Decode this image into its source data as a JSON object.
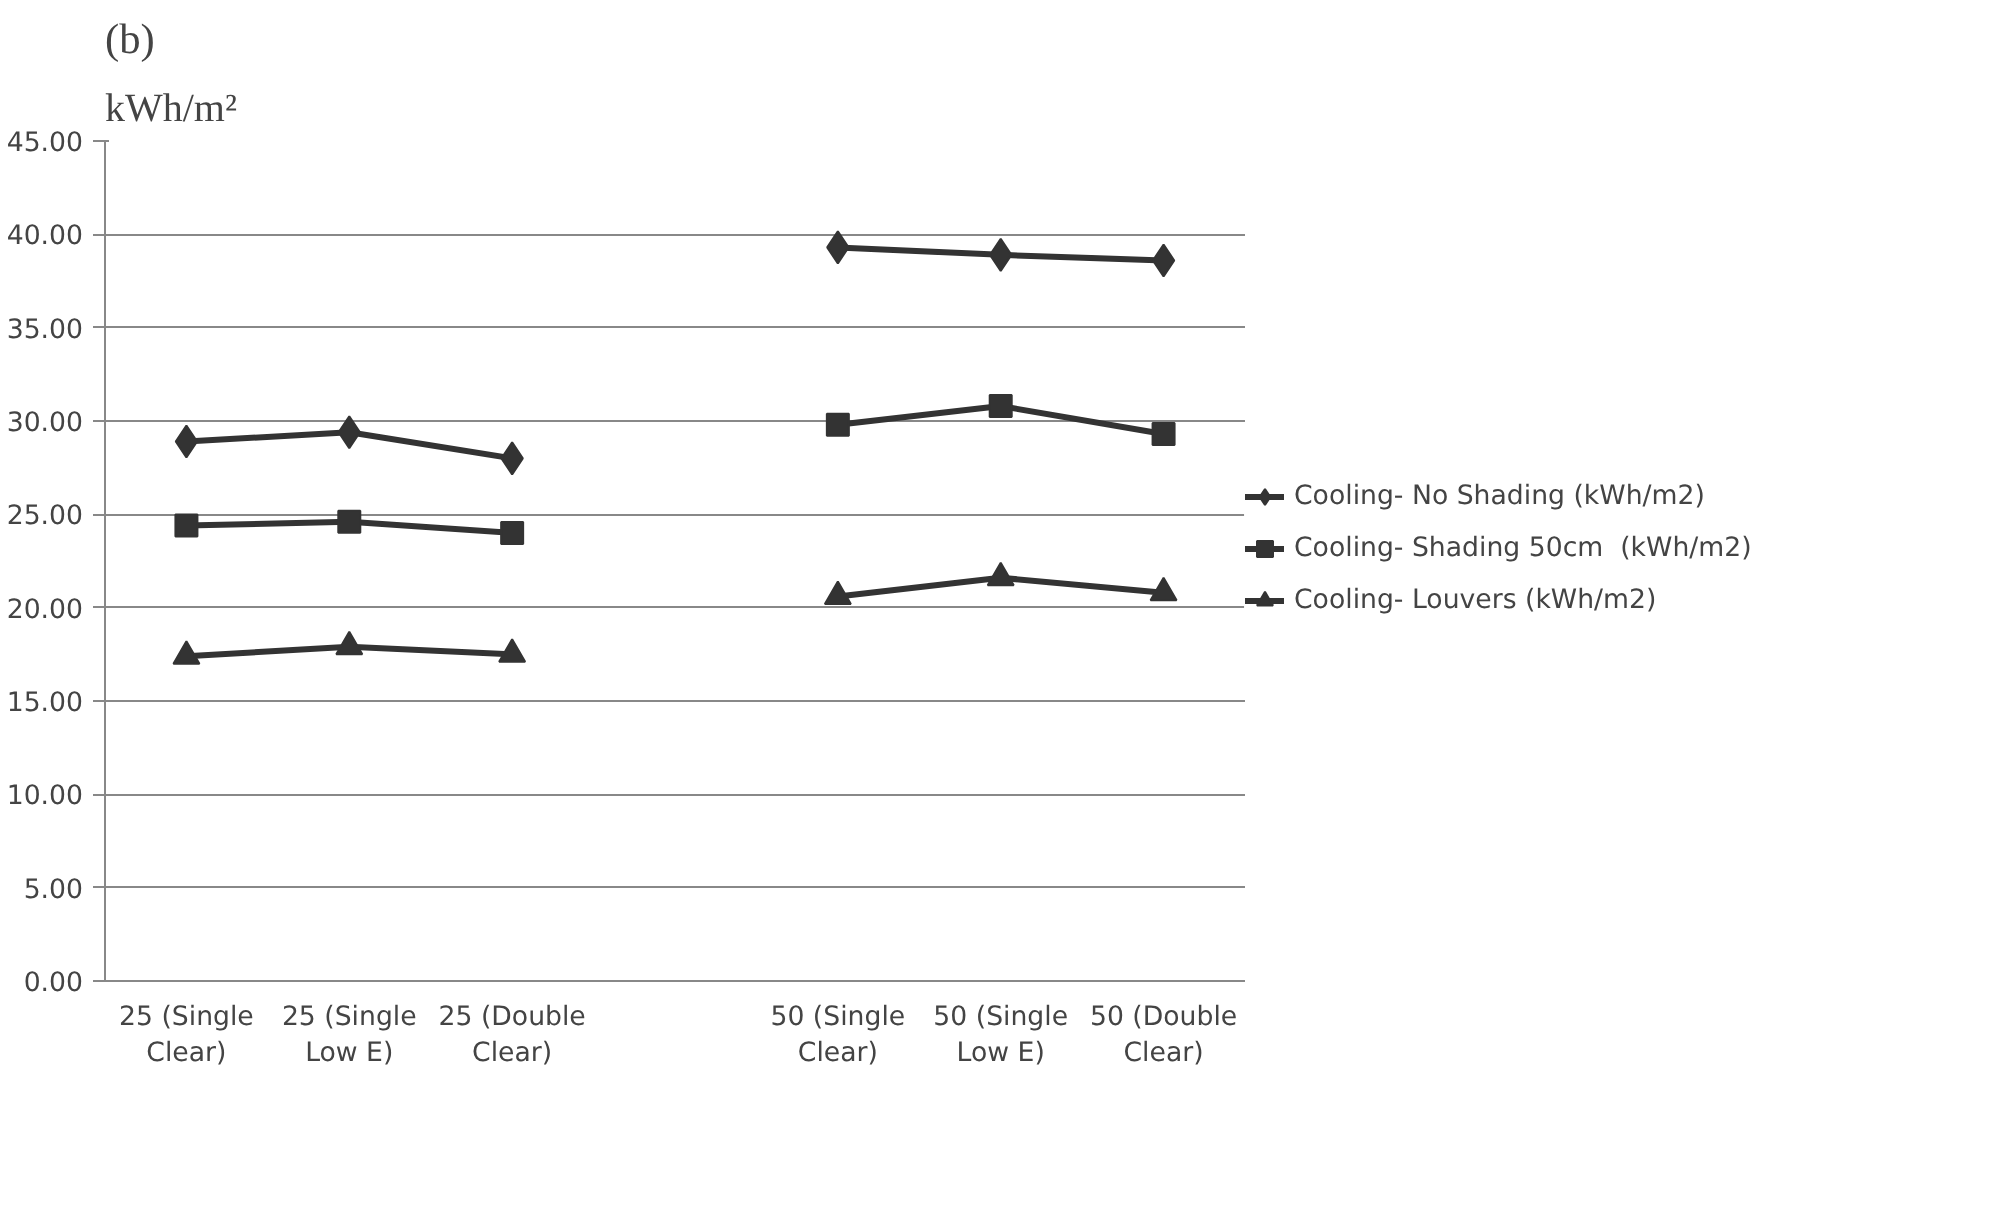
{
  "chart_data": {
    "type": "line",
    "title": "(b)",
    "ylabel": "kWh/m²",
    "categories": [
      "25 (Single Clear)",
      "25 (Single Low E)",
      "25 (Double Clear)",
      null,
      "50 (Single Clear)",
      "50 (Single Low E)",
      "50 (Double Clear)"
    ],
    "series": [
      {
        "name": "Cooling- No Shading (kWh/m2)",
        "color": "#333333",
        "marker": "diamond",
        "values": [
          28.9,
          29.4,
          28.0,
          null,
          39.3,
          38.9,
          38.6
        ]
      },
      {
        "name": "Cooling- Shading 50cm  (kWh/m2)",
        "color": "#333333",
        "marker": "square",
        "values": [
          24.4,
          24.6,
          24.0,
          null,
          29.8,
          30.8,
          29.3
        ]
      },
      {
        "name": "Cooling- Louvers (kWh/m2)",
        "color": "#333333",
        "marker": "triangle",
        "values": [
          17.4,
          17.9,
          17.5,
          null,
          20.6,
          21.6,
          20.8
        ]
      }
    ],
    "ylim": [
      0,
      45
    ],
    "yticks": [
      {
        "value": 0,
        "label": "0.00"
      },
      {
        "value": 5,
        "label": "5.00"
      },
      {
        "value": 10,
        "label": "10.00"
      },
      {
        "value": 15,
        "label": "15.00"
      },
      {
        "value": 20,
        "label": "20.00"
      },
      {
        "value": 25,
        "label": "25.00"
      },
      {
        "value": 30,
        "label": "30.00"
      },
      {
        "value": 35,
        "label": "35.00"
      },
      {
        "value": 40,
        "label": "40.00"
      },
      {
        "value": 45,
        "label": "45.00"
      }
    ],
    "grid": "y",
    "legend": "right",
    "line_style": "solid"
  }
}
